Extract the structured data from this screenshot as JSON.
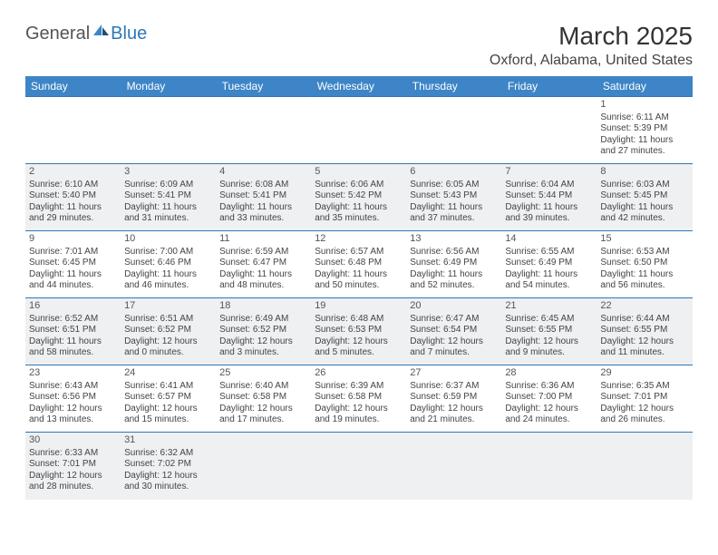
{
  "logo": {
    "part1": "General",
    "part2": "Blue"
  },
  "title": "March 2025",
  "location": "Oxford, Alabama, United States",
  "headers": [
    "Sunday",
    "Monday",
    "Tuesday",
    "Wednesday",
    "Thursday",
    "Friday",
    "Saturday"
  ],
  "colors": {
    "header_bg": "#3d85c6",
    "header_text": "#ffffff",
    "row_border": "#2e77b8",
    "alt_row_bg": "#eef0f2",
    "text": "#444444",
    "logo_gray": "#555555",
    "logo_blue": "#2e77b8"
  },
  "weeks": [
    [
      null,
      null,
      null,
      null,
      null,
      null,
      {
        "n": "1",
        "sr": "6:11 AM",
        "ss": "5:39 PM",
        "dl": "11 hours and 27 minutes."
      }
    ],
    [
      {
        "n": "2",
        "sr": "6:10 AM",
        "ss": "5:40 PM",
        "dl": "11 hours and 29 minutes."
      },
      {
        "n": "3",
        "sr": "6:09 AM",
        "ss": "5:41 PM",
        "dl": "11 hours and 31 minutes."
      },
      {
        "n": "4",
        "sr": "6:08 AM",
        "ss": "5:41 PM",
        "dl": "11 hours and 33 minutes."
      },
      {
        "n": "5",
        "sr": "6:06 AM",
        "ss": "5:42 PM",
        "dl": "11 hours and 35 minutes."
      },
      {
        "n": "6",
        "sr": "6:05 AM",
        "ss": "5:43 PM",
        "dl": "11 hours and 37 minutes."
      },
      {
        "n": "7",
        "sr": "6:04 AM",
        "ss": "5:44 PM",
        "dl": "11 hours and 39 minutes."
      },
      {
        "n": "8",
        "sr": "6:03 AM",
        "ss": "5:45 PM",
        "dl": "11 hours and 42 minutes."
      }
    ],
    [
      {
        "n": "9",
        "sr": "7:01 AM",
        "ss": "6:45 PM",
        "dl": "11 hours and 44 minutes."
      },
      {
        "n": "10",
        "sr": "7:00 AM",
        "ss": "6:46 PM",
        "dl": "11 hours and 46 minutes."
      },
      {
        "n": "11",
        "sr": "6:59 AM",
        "ss": "6:47 PM",
        "dl": "11 hours and 48 minutes."
      },
      {
        "n": "12",
        "sr": "6:57 AM",
        "ss": "6:48 PM",
        "dl": "11 hours and 50 minutes."
      },
      {
        "n": "13",
        "sr": "6:56 AM",
        "ss": "6:49 PM",
        "dl": "11 hours and 52 minutes."
      },
      {
        "n": "14",
        "sr": "6:55 AM",
        "ss": "6:49 PM",
        "dl": "11 hours and 54 minutes."
      },
      {
        "n": "15",
        "sr": "6:53 AM",
        "ss": "6:50 PM",
        "dl": "11 hours and 56 minutes."
      }
    ],
    [
      {
        "n": "16",
        "sr": "6:52 AM",
        "ss": "6:51 PM",
        "dl": "11 hours and 58 minutes."
      },
      {
        "n": "17",
        "sr": "6:51 AM",
        "ss": "6:52 PM",
        "dl": "12 hours and 0 minutes."
      },
      {
        "n": "18",
        "sr": "6:49 AM",
        "ss": "6:52 PM",
        "dl": "12 hours and 3 minutes."
      },
      {
        "n": "19",
        "sr": "6:48 AM",
        "ss": "6:53 PM",
        "dl": "12 hours and 5 minutes."
      },
      {
        "n": "20",
        "sr": "6:47 AM",
        "ss": "6:54 PM",
        "dl": "12 hours and 7 minutes."
      },
      {
        "n": "21",
        "sr": "6:45 AM",
        "ss": "6:55 PM",
        "dl": "12 hours and 9 minutes."
      },
      {
        "n": "22",
        "sr": "6:44 AM",
        "ss": "6:55 PM",
        "dl": "12 hours and 11 minutes."
      }
    ],
    [
      {
        "n": "23",
        "sr": "6:43 AM",
        "ss": "6:56 PM",
        "dl": "12 hours and 13 minutes."
      },
      {
        "n": "24",
        "sr": "6:41 AM",
        "ss": "6:57 PM",
        "dl": "12 hours and 15 minutes."
      },
      {
        "n": "25",
        "sr": "6:40 AM",
        "ss": "6:58 PM",
        "dl": "12 hours and 17 minutes."
      },
      {
        "n": "26",
        "sr": "6:39 AM",
        "ss": "6:58 PM",
        "dl": "12 hours and 19 minutes."
      },
      {
        "n": "27",
        "sr": "6:37 AM",
        "ss": "6:59 PM",
        "dl": "12 hours and 21 minutes."
      },
      {
        "n": "28",
        "sr": "6:36 AM",
        "ss": "7:00 PM",
        "dl": "12 hours and 24 minutes."
      },
      {
        "n": "29",
        "sr": "6:35 AM",
        "ss": "7:01 PM",
        "dl": "12 hours and 26 minutes."
      }
    ],
    [
      {
        "n": "30",
        "sr": "6:33 AM",
        "ss": "7:01 PM",
        "dl": "12 hours and 28 minutes."
      },
      {
        "n": "31",
        "sr": "6:32 AM",
        "ss": "7:02 PM",
        "dl": "12 hours and 30 minutes."
      },
      null,
      null,
      null,
      null,
      null
    ]
  ],
  "labels": {
    "sunrise": "Sunrise: ",
    "sunset": "Sunset: ",
    "daylight": "Daylight: "
  }
}
